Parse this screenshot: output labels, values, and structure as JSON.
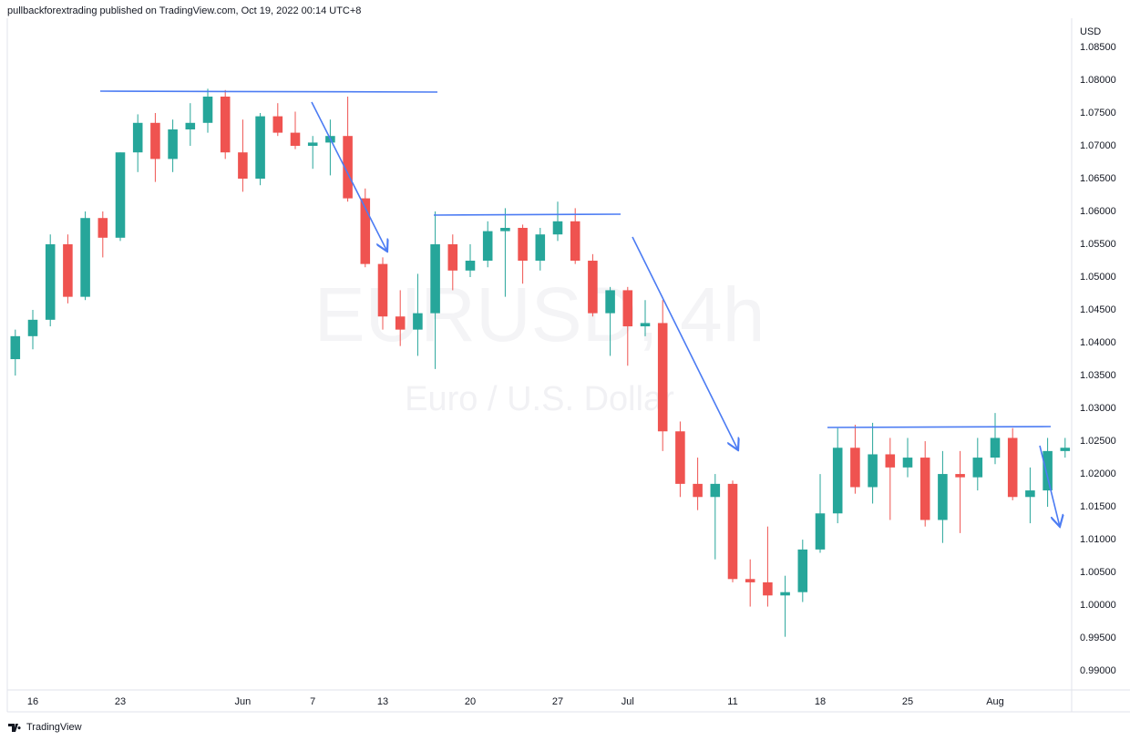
{
  "header": "pullbackforextrading published on TradingView.com, Oct 19, 2022 00:14 UTC+8",
  "footer": "TradingView",
  "chart_data": {
    "type": "candlestick",
    "watermark_symbol": "EURUSD, 4h",
    "watermark_name": "Euro / U.S. Dollar",
    "y_axis_label": "USD",
    "up_color": "#26a69a",
    "down_color": "#ef5350",
    "grid": false,
    "categories": [
      null,
      "16",
      null,
      null,
      null,
      null,
      "23",
      null,
      null,
      null,
      null,
      null,
      null,
      "Jun",
      null,
      null,
      null,
      "7",
      null,
      null,
      null,
      "13",
      null,
      null,
      null,
      null,
      "20",
      null,
      null,
      null,
      null,
      "27",
      null,
      null,
      null,
      "Jul",
      null,
      null,
      null,
      null,
      null,
      "11",
      null,
      null,
      null,
      null,
      "18",
      null,
      null,
      null,
      null,
      "25",
      null,
      null,
      null,
      null,
      "Aug",
      null,
      null,
      null,
      null
    ],
    "open": [
      1.0375,
      1.041,
      1.0435,
      1.055,
      1.047,
      1.059,
      1.056,
      1.069,
      1.0735,
      1.068,
      1.0725,
      1.0735,
      1.0775,
      1.069,
      1.065,
      1.0745,
      1.072,
      1.07,
      1.0705,
      1.0715,
      1.062,
      1.052,
      1.044,
      1.042,
      1.0445,
      1.055,
      1.051,
      1.0525,
      1.057,
      1.0575,
      1.0525,
      1.0565,
      1.0585,
      1.0525,
      1.0445,
      1.048,
      1.0425,
      1.043,
      1.0265,
      1.0185,
      1.0165,
      1.0185,
      1.004,
      1.0035,
      1.0015,
      1.002,
      1.0085,
      1.014,
      1.024,
      1.018,
      1.023,
      1.021,
      1.0225,
      1.013,
      1.02,
      1.0195,
      1.0225,
      1.0255,
      1.0165,
      1.0175,
      1.0235
    ],
    "high": [
      1.042,
      1.045,
      1.0565,
      1.0565,
      1.06,
      1.06,
      1.069,
      1.0748,
      1.075,
      1.074,
      1.0765,
      1.0787,
      1.0785,
      1.074,
      1.075,
      1.0765,
      1.0752,
      1.0715,
      1.074,
      1.0775,
      1.0635,
      1.053,
      1.048,
      1.0505,
      1.06,
      1.0565,
      1.055,
      1.0585,
      1.0605,
      1.058,
      1.0575,
      1.0615,
      1.0605,
      1.0535,
      1.0485,
      1.0485,
      1.0465,
      1.0465,
      1.028,
      1.0225,
      1.02,
      1.019,
      1.007,
      1.012,
      1.0045,
      1.01,
      1.02,
      1.027,
      1.0275,
      1.0278,
      1.0255,
      1.0255,
      1.025,
      1.0235,
      1.0235,
      1.0255,
      1.0293,
      1.027,
      1.021,
      1.0255,
      1.0255
    ],
    "low": [
      1.035,
      1.039,
      1.0425,
      1.046,
      1.0465,
      1.053,
      1.0555,
      1.066,
      1.0645,
      1.066,
      1.07,
      1.072,
      1.068,
      1.063,
      1.064,
      1.0715,
      1.0695,
      1.0665,
      1.0655,
      1.0615,
      1.0515,
      1.042,
      1.0395,
      1.038,
      1.036,
      1.048,
      1.05,
      1.0515,
      1.047,
      1.049,
      1.051,
      1.0555,
      1.052,
      1.044,
      1.038,
      1.0365,
      1.041,
      1.0235,
      1.0165,
      1.0145,
      1.007,
      1.0035,
      0.9998,
      0.9998,
      0.9952,
      1.0005,
      1.008,
      1.0125,
      1.017,
      1.0155,
      1.013,
      1.0195,
      1.012,
      1.0095,
      1.011,
      1.0175,
      1.0215,
      1.016,
      1.0125,
      1.015,
      1.0225
    ],
    "close": [
      1.041,
      1.0435,
      1.055,
      1.047,
      1.059,
      1.056,
      1.069,
      1.0735,
      1.068,
      1.0725,
      1.0735,
      1.0775,
      1.069,
      1.065,
      1.0745,
      1.072,
      1.07,
      1.0705,
      1.0715,
      1.062,
      1.052,
      1.044,
      1.042,
      1.0445,
      1.055,
      1.051,
      1.0525,
      1.057,
      1.0575,
      1.0525,
      1.0565,
      1.0585,
      1.0525,
      1.0445,
      1.048,
      1.0425,
      1.043,
      1.0265,
      1.0185,
      1.0165,
      1.0185,
      1.004,
      1.0035,
      1.0015,
      1.002,
      1.0085,
      1.014,
      1.024,
      1.018,
      1.023,
      1.021,
      1.0225,
      1.013,
      1.02,
      1.0195,
      1.0225,
      1.0255,
      1.0165,
      1.0175,
      1.0235,
      1.024
    ],
    "ylim": [
      0.9871,
      1.08944
    ],
    "yticks": [
      {
        "value": 0.99,
        "label": "0.99000"
      },
      {
        "value": 0.995,
        "label": "0.99500"
      },
      {
        "value": 1.0,
        "label": "1.00000"
      },
      {
        "value": 1.005,
        "label": "1.00500"
      },
      {
        "value": 1.01,
        "label": "1.01000"
      },
      {
        "value": 1.015,
        "label": "1.01500"
      },
      {
        "value": 1.02,
        "label": "1.02000"
      },
      {
        "value": 1.025,
        "label": "1.02500"
      },
      {
        "value": 1.03,
        "label": "1.03000"
      },
      {
        "value": 1.035,
        "label": "1.03500"
      },
      {
        "value": 1.04,
        "label": "1.04000"
      },
      {
        "value": 1.045,
        "label": "1.04500"
      },
      {
        "value": 1.05,
        "label": "1.05000"
      },
      {
        "value": 1.055,
        "label": "1.05500"
      },
      {
        "value": 1.06,
        "label": "1.06000"
      },
      {
        "value": 1.065,
        "label": "1.06500"
      },
      {
        "value": 1.07,
        "label": "1.07000"
      },
      {
        "value": 1.075,
        "label": "1.07500"
      },
      {
        "value": 1.08,
        "label": "1.08000"
      },
      {
        "value": 1.085,
        "label": "1.08500"
      }
    ]
  }
}
